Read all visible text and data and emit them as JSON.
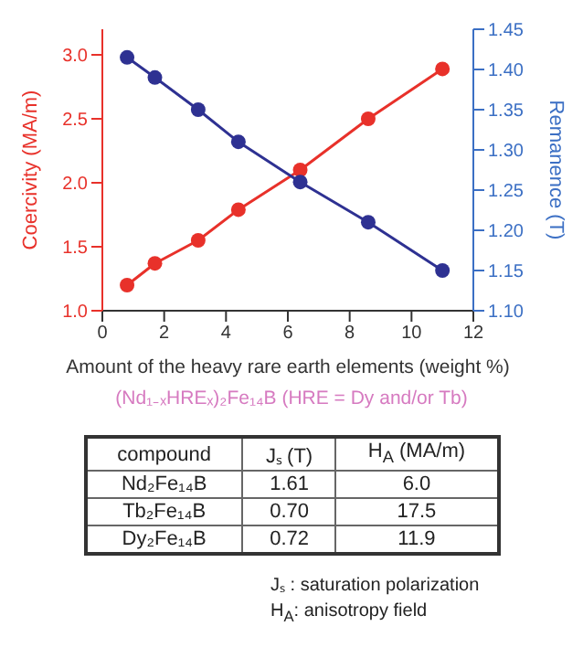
{
  "chart_data": [
    {
      "type": "line",
      "xlabel": "Amount of the heavy rare earth elements (weight %)",
      "ylabel": "Coercivity (MA/m)",
      "y2label": "Remanence (T)",
      "xlim": [
        0,
        12
      ],
      "xticks": [
        0,
        2,
        4,
        6,
        8,
        10,
        12
      ],
      "ylim": [
        1.0,
        3.2
      ],
      "yticks": [
        {
          "value": 1.0,
          "label": "1.0"
        },
        1.5,
        {
          "value": 2.0,
          "label": "2.0"
        },
        2.5,
        {
          "value": 3.0,
          "label": "3.0"
        }
      ],
      "y2lim": [
        1.1,
        1.45
      ],
      "y2ticks": [
        {
          "value": 1.1,
          "label": "1.10"
        },
        1.15,
        {
          "value": 1.2,
          "label": "1.20"
        },
        1.25,
        {
          "value": 1.3,
          "label": "1.30"
        },
        1.35,
        {
          "value": 1.4,
          "label": "1.40"
        },
        1.45
      ],
      "marker": "circle",
      "annotations": [
        "(Nd₁₋ₓHREₓ)₂Fe₁₄B    (HRE = Dy and/or Tb)"
      ],
      "series": [
        {
          "color": "#e8312a",
          "x": [
            0.8,
            1.7,
            3.1,
            4.4,
            6.4,
            8.6,
            11
          ],
          "values": [
            1.2,
            1.37,
            1.55,
            1.79,
            2.1,
            2.5,
            2.89
          ]
        },
        {
          "color": "#2e3192",
          "axis": "y2",
          "x": [
            0.8,
            1.7,
            3.1,
            4.4,
            6.4,
            8.6,
            11
          ],
          "values": [
            1.415,
            1.39,
            1.35,
            1.31,
            1.26,
            1.21,
            1.15
          ]
        }
      ]
    },
    {
      "type": "other",
      "xlabel": "compound",
      "categories": [
        "Nd₂Fe₁₄B",
        "Tb₂Fe₁₄B",
        "Dy₂Fe₁₄B"
      ],
      "data_labels": true,
      "series": [
        {
          "name": "Jₛ (T)",
          "values": [
            1.61,
            0.7,
            0.72
          ],
          "value_labels": [
            "1.61",
            "0.70",
            "0.72"
          ]
        },
        {
          "name": "H$_{A}$ (MA/m)",
          "values": [
            6.0,
            17.5,
            11.9
          ],
          "value_labels": [
            "6.0",
            "17.5",
            "11.9"
          ]
        }
      ],
      "annotations": [
        "Jₛ : saturation polarization",
        "H$_{A}$: anisotropy field"
      ]
    }
  ]
}
